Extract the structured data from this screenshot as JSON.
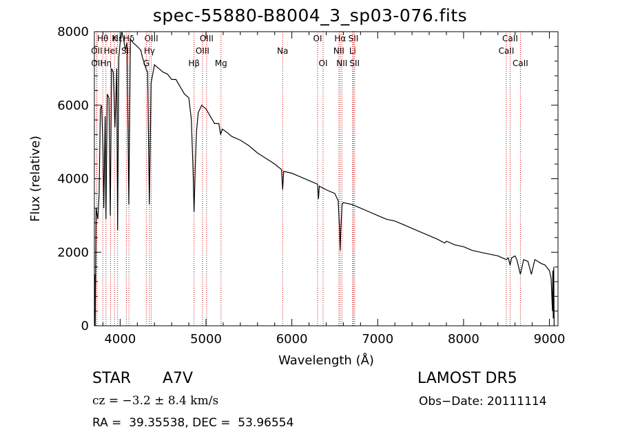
{
  "figure": {
    "title": "spec-55880-B8004_3_sp03-076.fits",
    "object_class": "STAR",
    "subclass": "A7V",
    "survey": "LAMOST DR5",
    "redshift_text": "cz = −3.2 ± 8.4 km/s",
    "obs_date_text": "Obs−Date: 20111114",
    "coords_text": "RA =  39.35538, DEC =  53.96554"
  },
  "chart_data": {
    "type": "line",
    "xlabel": "Wavelength (Å)",
    "ylabel": "Flux (relative)",
    "xlim": [
      3700,
      9100
    ],
    "ylim": [
      0,
      8000
    ],
    "x_ticks": [
      4000,
      5000,
      6000,
      7000,
      8000,
      9000
    ],
    "y_ticks": [
      0,
      2000,
      4000,
      6000,
      8000
    ],
    "grid": false,
    "series": [
      {
        "points": [
          [
            3700,
            100
          ],
          [
            3705,
            1400
          ],
          [
            3710,
            0
          ],
          [
            3720,
            3200
          ],
          [
            3740,
            2900
          ],
          [
            3755,
            3600
          ],
          [
            3770,
            5900
          ],
          [
            3785,
            6000
          ],
          [
            3800,
            4800
          ],
          [
            3810,
            3200
          ],
          [
            3825,
            5700
          ],
          [
            3835,
            2900
          ],
          [
            3850,
            6300
          ],
          [
            3870,
            6200
          ],
          [
            3885,
            3000
          ],
          [
            3900,
            7000
          ],
          [
            3920,
            6900
          ],
          [
            3940,
            5400
          ],
          [
            3960,
            7000
          ],
          [
            3970,
            2600
          ],
          [
            3985,
            7300
          ],
          [
            4000,
            7700
          ],
          [
            4020,
            8000
          ],
          [
            4040,
            7800
          ],
          [
            4060,
            7500
          ],
          [
            4080,
            7700
          ],
          [
            4101,
            3300
          ],
          [
            4120,
            7800
          ],
          [
            4150,
            7700
          ],
          [
            4200,
            7600
          ],
          [
            4240,
            7500
          ],
          [
            4260,
            7300
          ],
          [
            4300,
            7000
          ],
          [
            4320,
            6900
          ],
          [
            4340,
            3300
          ],
          [
            4360,
            6600
          ],
          [
            4400,
            7100
          ],
          [
            4450,
            7000
          ],
          [
            4500,
            6900
          ],
          [
            4550,
            6850
          ],
          [
            4600,
            6700
          ],
          [
            4650,
            6700
          ],
          [
            4700,
            6500
          ],
          [
            4750,
            6300
          ],
          [
            4800,
            6200
          ],
          [
            4830,
            5600
          ],
          [
            4850,
            4200
          ],
          [
            4861,
            3100
          ],
          [
            4875,
            4300
          ],
          [
            4890,
            5300
          ],
          [
            4910,
            5800
          ],
          [
            4950,
            6000
          ],
          [
            5000,
            5900
          ],
          [
            5050,
            5700
          ],
          [
            5100,
            5500
          ],
          [
            5150,
            5500
          ],
          [
            5170,
            5200
          ],
          [
            5190,
            5350
          ],
          [
            5250,
            5250
          ],
          [
            5300,
            5150
          ],
          [
            5400,
            5050
          ],
          [
            5500,
            4900
          ],
          [
            5600,
            4700
          ],
          [
            5700,
            4550
          ],
          [
            5800,
            4400
          ],
          [
            5880,
            4250
          ],
          [
            5893,
            3700
          ],
          [
            5905,
            4200
          ],
          [
            6000,
            4150
          ],
          [
            6100,
            4050
          ],
          [
            6200,
            3950
          ],
          [
            6300,
            3850
          ],
          [
            6310,
            3450
          ],
          [
            6320,
            3800
          ],
          [
            6400,
            3700
          ],
          [
            6500,
            3600
          ],
          [
            6540,
            3400
          ],
          [
            6556,
            2600
          ],
          [
            6563,
            2050
          ],
          [
            6570,
            2600
          ],
          [
            6585,
            3300
          ],
          [
            6600,
            3350
          ],
          [
            6700,
            3300
          ],
          [
            6800,
            3200
          ],
          [
            6900,
            3100
          ],
          [
            7000,
            3000
          ],
          [
            7100,
            2900
          ],
          [
            7200,
            2850
          ],
          [
            7300,
            2750
          ],
          [
            7400,
            2650
          ],
          [
            7500,
            2550
          ],
          [
            7600,
            2450
          ],
          [
            7700,
            2350
          ],
          [
            7780,
            2250
          ],
          [
            7800,
            2300
          ],
          [
            7900,
            2200
          ],
          [
            8000,
            2150
          ],
          [
            8100,
            2050
          ],
          [
            8200,
            2000
          ],
          [
            8300,
            1950
          ],
          [
            8400,
            1900
          ],
          [
            8498,
            1800
          ],
          [
            8520,
            1850
          ],
          [
            8542,
            1650
          ],
          [
            8560,
            1850
          ],
          [
            8600,
            1900
          ],
          [
            8620,
            1800
          ],
          [
            8662,
            1400
          ],
          [
            8700,
            1800
          ],
          [
            8750,
            1750
          ],
          [
            8790,
            1400
          ],
          [
            8830,
            1800
          ],
          [
            8900,
            1700
          ],
          [
            8950,
            1650
          ],
          [
            9000,
            1500
          ],
          [
            9020,
            1300
          ],
          [
            9035,
            400
          ],
          [
            9040,
            1500
          ],
          [
            9045,
            200
          ],
          [
            9050,
            1600
          ],
          [
            9055,
            0
          ]
        ]
      }
    ],
    "lines": [
      {
        "label": "Hθ",
        "wavelength": 3798,
        "row": 1
      },
      {
        "label": "K",
        "wavelength": 3934,
        "row": 1
      },
      {
        "label": "Hε",
        "wavelength": 3970,
        "row": 1
      },
      {
        "label": "Hδ",
        "wavelength": 4102,
        "row": 1
      },
      {
        "label": "OIII",
        "wavelength": 4363,
        "row": 1
      },
      {
        "label": "OIII",
        "wavelength": 5007,
        "row": 1
      },
      {
        "label": "OI",
        "wavelength": 6300,
        "row": 1
      },
      {
        "label": "Hα",
        "wavelength": 6563,
        "row": 1
      },
      {
        "label": "SII",
        "wavelength": 6717,
        "row": 1
      },
      {
        "label": "CaII",
        "wavelength": 8542,
        "row": 1
      },
      {
        "label": "OII",
        "wavelength": 3727,
        "row": 2
      },
      {
        "label": "HeI",
        "wavelength": 3889,
        "row": 2
      },
      {
        "label": "SII",
        "wavelength": 4072,
        "row": 2
      },
      {
        "label": "Hγ",
        "wavelength": 4341,
        "row": 2
      },
      {
        "label": "OIII",
        "wavelength": 4959,
        "row": 2
      },
      {
        "label": "Na",
        "wavelength": 5893,
        "row": 2
      },
      {
        "label": "NII",
        "wavelength": 6548,
        "row": 2
      },
      {
        "label": "Li",
        "wavelength": 6708,
        "row": 2
      },
      {
        "label": "CaII",
        "wavelength": 8498,
        "row": 2
      },
      {
        "label": "OII",
        "wavelength": 3729,
        "row": 3
      },
      {
        "label": "Hη",
        "wavelength": 3835,
        "row": 3
      },
      {
        "label": "G",
        "wavelength": 4305,
        "row": 3
      },
      {
        "label": "Hβ",
        "wavelength": 4861,
        "row": 3
      },
      {
        "label": "Mg",
        "wavelength": 5175,
        "row": 3
      },
      {
        "label": "OI",
        "wavelength": 6364,
        "row": 3
      },
      {
        "label": "NII",
        "wavelength": 6583,
        "row": 3
      },
      {
        "label": "SII",
        "wavelength": 6731,
        "row": 3
      },
      {
        "label": "CaII",
        "wavelength": 8662,
        "row": 3
      }
    ]
  }
}
